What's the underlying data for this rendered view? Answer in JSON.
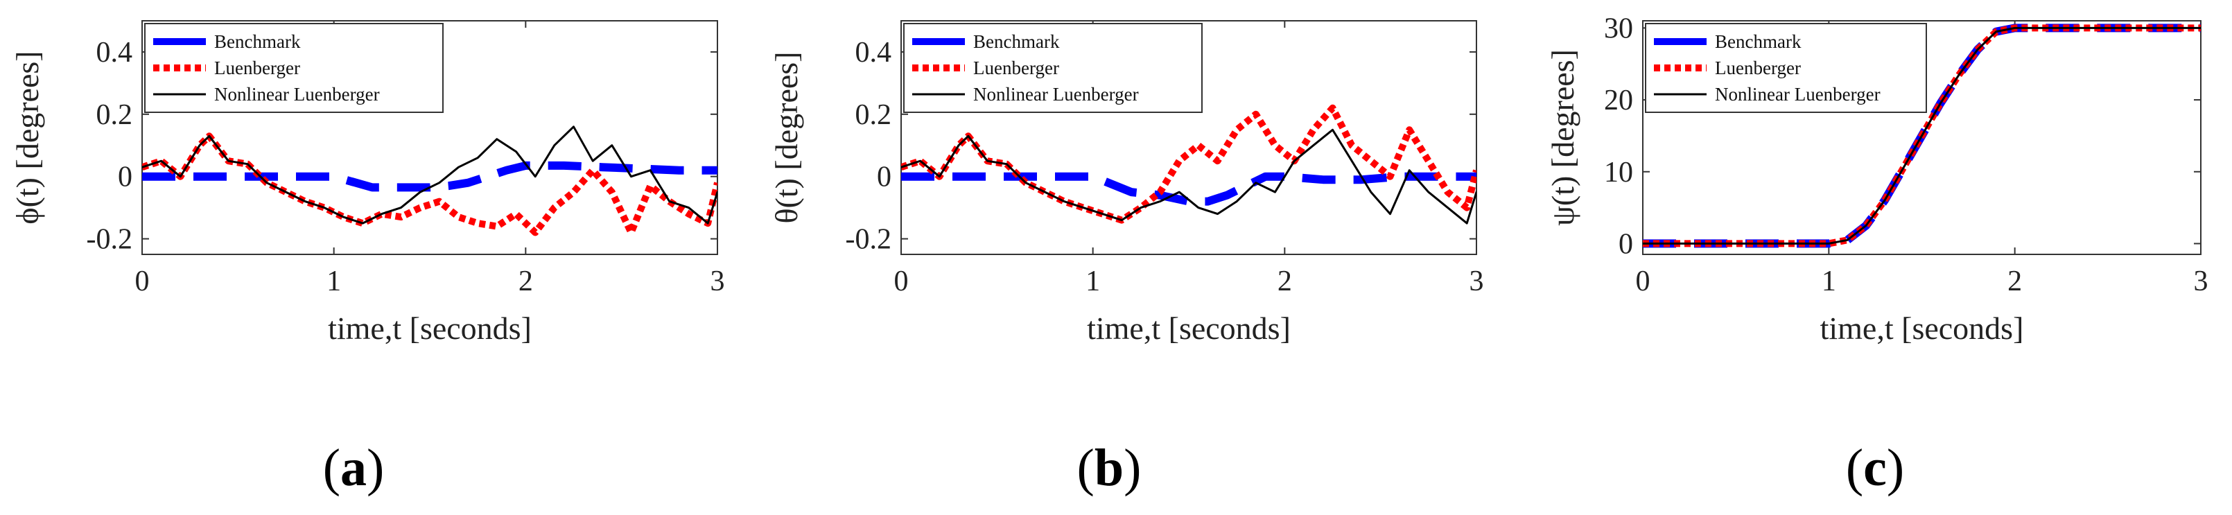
{
  "chart_data": [
    {
      "type": "line",
      "panel_label": "a",
      "xlabel": "time,t [seconds]",
      "ylabel": "ϕ(t) [degrees]",
      "xlim": [
        0,
        3
      ],
      "ylim": [
        -0.25,
        0.5
      ],
      "xticks": [
        0,
        1,
        2,
        3
      ],
      "yticks": [
        -0.2,
        0,
        0.2,
        0.4
      ],
      "ytick_labels": [
        "-0.2",
        "0",
        "0.2",
        "0.4"
      ],
      "legend": [
        "Benchmark",
        "Luenberger",
        "Nonlinear Luenberger"
      ],
      "legend_position": "top-left",
      "grid": false,
      "series": [
        {
          "name": "Benchmark",
          "style": "dashed",
          "color": "#0000ff",
          "x": [
            0,
            0.15,
            0.3,
            0.45,
            0.6,
            0.8,
            1.0,
            1.2,
            1.35,
            1.5,
            1.6,
            1.7,
            1.8,
            1.9,
            2.0,
            2.1,
            2.2,
            2.4,
            2.6,
            2.8,
            3.0
          ],
          "y": [
            0,
            0,
            0,
            0,
            0,
            0,
            0,
            -0.035,
            -0.035,
            -0.035,
            -0.03,
            -0.02,
            0.0,
            0.02,
            0.035,
            0.035,
            0.035,
            0.03,
            0.025,
            0.02,
            0.02
          ]
        },
        {
          "name": "Luenberger",
          "style": "dotted",
          "color": "#ff0000",
          "x": [
            0,
            0.1,
            0.2,
            0.3,
            0.35,
            0.45,
            0.55,
            0.65,
            0.75,
            0.85,
            0.95,
            1.05,
            1.15,
            1.25,
            1.35,
            1.45,
            1.55,
            1.65,
            1.75,
            1.85,
            1.95,
            2.05,
            2.15,
            2.25,
            2.35,
            2.45,
            2.55,
            2.65,
            2.75,
            2.85,
            2.95,
            3.0
          ],
          "y": [
            0.03,
            0.05,
            0.0,
            0.1,
            0.13,
            0.05,
            0.04,
            -0.02,
            -0.05,
            -0.08,
            -0.1,
            -0.13,
            -0.15,
            -0.12,
            -0.13,
            -0.1,
            -0.08,
            -0.13,
            -0.15,
            -0.16,
            -0.12,
            -0.18,
            -0.1,
            -0.05,
            0.02,
            -0.05,
            -0.18,
            -0.03,
            -0.08,
            -0.12,
            -0.15,
            -0.02
          ]
        },
        {
          "name": "Nonlinear Luenberger",
          "style": "solid",
          "color": "#000000",
          "x": [
            0,
            0.1,
            0.2,
            0.3,
            0.35,
            0.45,
            0.55,
            0.65,
            0.75,
            0.85,
            0.95,
            1.05,
            1.15,
            1.25,
            1.35,
            1.45,
            1.55,
            1.65,
            1.75,
            1.85,
            1.95,
            2.05,
            2.15,
            2.25,
            2.35,
            2.45,
            2.55,
            2.65,
            2.75,
            2.85,
            2.95,
            3.0
          ],
          "y": [
            0.03,
            0.05,
            0.0,
            0.1,
            0.13,
            0.05,
            0.04,
            -0.02,
            -0.05,
            -0.08,
            -0.1,
            -0.13,
            -0.15,
            -0.12,
            -0.1,
            -0.05,
            -0.02,
            0.03,
            0.06,
            0.12,
            0.08,
            0.0,
            0.1,
            0.16,
            0.05,
            0.1,
            0.0,
            0.02,
            -0.08,
            -0.1,
            -0.15,
            -0.05
          ]
        }
      ]
    },
    {
      "type": "line",
      "panel_label": "b",
      "xlabel": "time,t [seconds]",
      "ylabel": "θ(t) [degrees]",
      "xlim": [
        0,
        3
      ],
      "ylim": [
        -0.25,
        0.5
      ],
      "xticks": [
        0,
        1,
        2,
        3
      ],
      "yticks": [
        -0.2,
        0,
        0.2,
        0.4
      ],
      "ytick_labels": [
        "-0.2",
        "0",
        "0.2",
        "0.4"
      ],
      "legend": [
        "Benchmark",
        "Luenberger",
        "Nonlinear Luenberger"
      ],
      "legend_position": "top-left",
      "grid": false,
      "series": [
        {
          "name": "Benchmark",
          "style": "dashed",
          "color": "#0000ff",
          "x": [
            0,
            0.15,
            0.3,
            0.45,
            0.6,
            0.8,
            1.0,
            1.2,
            1.35,
            1.5,
            1.6,
            1.7,
            1.8,
            1.9,
            2.0,
            2.2,
            2.4,
            2.6,
            2.8,
            3.0
          ],
          "y": [
            0,
            0,
            0,
            0,
            0,
            0,
            0,
            -0.05,
            -0.06,
            -0.08,
            -0.08,
            -0.06,
            -0.03,
            0.0,
            0.0,
            -0.01,
            -0.01,
            0.0,
            0.0,
            0.0
          ]
        },
        {
          "name": "Luenberger",
          "style": "dotted",
          "color": "#ff0000",
          "x": [
            0,
            0.1,
            0.2,
            0.3,
            0.35,
            0.45,
            0.55,
            0.65,
            0.75,
            0.85,
            0.95,
            1.05,
            1.15,
            1.25,
            1.35,
            1.45,
            1.55,
            1.65,
            1.75,
            1.85,
            1.95,
            2.05,
            2.15,
            2.25,
            2.35,
            2.45,
            2.55,
            2.65,
            2.75,
            2.85,
            2.95,
            3.0
          ],
          "y": [
            0.03,
            0.05,
            0.0,
            0.1,
            0.13,
            0.05,
            0.04,
            -0.02,
            -0.05,
            -0.08,
            -0.1,
            -0.12,
            -0.14,
            -0.1,
            -0.05,
            0.05,
            0.1,
            0.05,
            0.15,
            0.2,
            0.1,
            0.05,
            0.15,
            0.22,
            0.1,
            0.05,
            0.0,
            0.15,
            0.05,
            -0.05,
            -0.1,
            0.02
          ]
        },
        {
          "name": "Nonlinear Luenberger",
          "style": "solid",
          "color": "#000000",
          "x": [
            0,
            0.1,
            0.2,
            0.3,
            0.35,
            0.45,
            0.55,
            0.65,
            0.75,
            0.85,
            0.95,
            1.05,
            1.15,
            1.25,
            1.35,
            1.45,
            1.55,
            1.65,
            1.75,
            1.85,
            1.95,
            2.05,
            2.15,
            2.25,
            2.35,
            2.45,
            2.55,
            2.65,
            2.75,
            2.85,
            2.95,
            3.0
          ],
          "y": [
            0.03,
            0.05,
            0.0,
            0.1,
            0.13,
            0.05,
            0.04,
            -0.02,
            -0.05,
            -0.08,
            -0.1,
            -0.12,
            -0.14,
            -0.1,
            -0.08,
            -0.05,
            -0.1,
            -0.12,
            -0.08,
            -0.02,
            -0.05,
            0.05,
            0.1,
            0.15,
            0.05,
            -0.05,
            -0.12,
            0.02,
            -0.05,
            -0.1,
            -0.15,
            -0.05
          ]
        }
      ]
    },
    {
      "type": "line",
      "panel_label": "c",
      "xlabel": "time,t [seconds]",
      "ylabel": "ψ(t) [degrees]",
      "xlim": [
        0,
        3
      ],
      "ylim": [
        -1.5,
        31
      ],
      "xticks": [
        0,
        1,
        2,
        3
      ],
      "yticks": [
        0,
        10,
        20,
        30
      ],
      "ytick_labels": [
        "0",
        "10",
        "20",
        "30"
      ],
      "legend": [
        "Benchmark",
        "Luenberger",
        "Nonlinear Luenberger"
      ],
      "legend_position": "top-left",
      "grid": false,
      "series": [
        {
          "name": "Benchmark",
          "style": "dashed",
          "color": "#0000ff",
          "x": [
            0,
            0.5,
            1.0,
            1.1,
            1.2,
            1.3,
            1.4,
            1.5,
            1.6,
            1.7,
            1.8,
            1.9,
            2.0,
            2.2,
            2.5,
            3.0
          ],
          "y": [
            0,
            0,
            0,
            0.5,
            2.5,
            6,
            10.5,
            15,
            19.5,
            23.5,
            27,
            29.5,
            30,
            30,
            30,
            30
          ]
        },
        {
          "name": "Luenberger",
          "style": "dotted",
          "color": "#ff0000",
          "x": [
            0,
            0.5,
            1.0,
            1.1,
            1.2,
            1.3,
            1.4,
            1.5,
            1.6,
            1.7,
            1.8,
            1.9,
            2.0,
            2.2,
            2.5,
            3.0
          ],
          "y": [
            0,
            0,
            0,
            0.5,
            2.5,
            6,
            10.5,
            15,
            19.5,
            23.5,
            27,
            29.5,
            30,
            30,
            30,
            30
          ]
        },
        {
          "name": "Nonlinear Luenberger",
          "style": "solid",
          "color": "#000000",
          "x": [
            0,
            0.5,
            1.0,
            1.1,
            1.2,
            1.3,
            1.4,
            1.5,
            1.6,
            1.7,
            1.8,
            1.9,
            2.0,
            2.2,
            2.5,
            3.0
          ],
          "y": [
            0,
            0,
            0,
            0.5,
            2.5,
            6,
            10.5,
            15,
            19.5,
            23.5,
            27,
            29.5,
            30,
            30,
            30,
            30
          ]
        }
      ]
    }
  ]
}
